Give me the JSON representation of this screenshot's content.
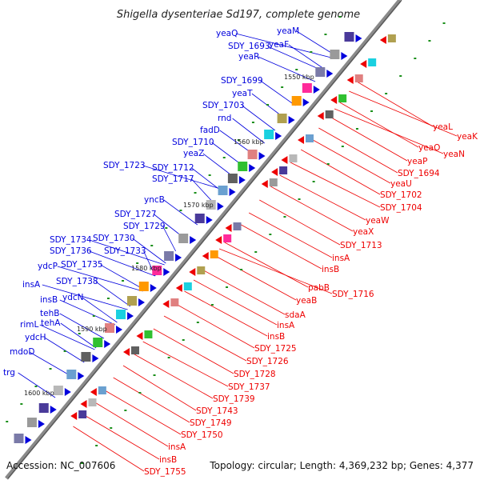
{
  "title": "Shigella dysenteriae Sd197, complete genome",
  "footer": {
    "accession": "Accession: NC_007606",
    "summary": "Topology: circular; Length: 4,369,232 bp; Genes: 4,377"
  },
  "colors": {
    "forward": "#0000dd",
    "reverse": "#ee0000",
    "backbone": "#8a8a8a",
    "tick": "#1a8f1a"
  },
  "kbp_labels": [
    "1550 kbp",
    "1560 kbp",
    "1570 kbp",
    "1580 kbp",
    "1590 kbp",
    "1600 kbp"
  ],
  "forward_genes": [
    "yeaQ",
    "yeaM",
    "SDY_1693",
    "yeaF",
    "yeaR",
    "SDY_1699",
    "yeaT",
    "SDY_1703",
    "rnd",
    "fadD",
    "SDY_1710",
    "yeaZ",
    "SDY_1712",
    "SDY_1723",
    "SDY_1717",
    "yncB",
    "SDY_1727",
    "SDY_1729",
    "SDY_1734",
    "SDY_1730",
    "SDY_1736",
    "SDY_1733",
    "ydcP",
    "SDY_1735",
    "SDY_1738",
    "insA",
    "insB",
    "ydcN",
    "tehB",
    "rimL",
    "tehA",
    "ydcH",
    "mdoD",
    "trg"
  ],
  "reverse_genes": [
    "yeaL",
    "yeaK",
    "yeaO",
    "yeaN",
    "yeaP",
    "SDY_1694",
    "yeaU",
    "SDY_1702",
    "SDY_1704",
    "yeaW",
    "yeaX",
    "SDY_1713",
    "insA",
    "insB",
    "pabB",
    "SDY_1716",
    "yeaB",
    "sdaA",
    "insA",
    "insB",
    "SDY_1725",
    "SDY_1726",
    "SDY_1728",
    "SDY_1737",
    "SDY_1739",
    "SDY_1743",
    "SDY_1749",
    "SDY_1750",
    "insA",
    "insB",
    "SDY_1755"
  ]
}
